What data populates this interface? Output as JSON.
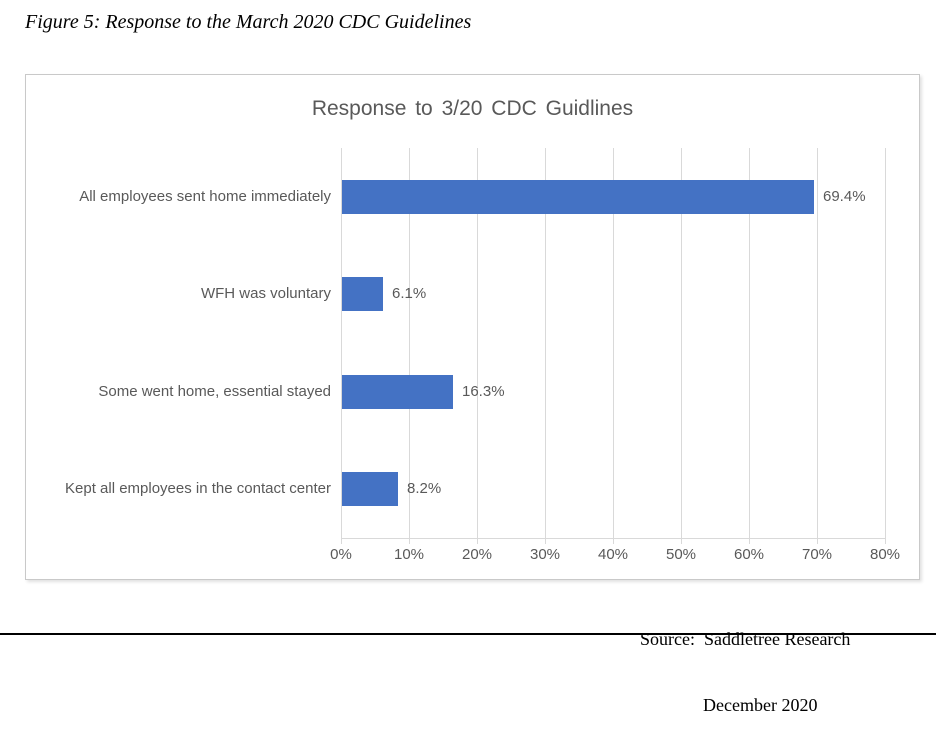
{
  "page": {
    "caption": "Figure 5: Response to the March 2020 CDC Guidelines",
    "source_label": "Source:  Saddletree Research",
    "source_date": "December 2020"
  },
  "chart_data": {
    "type": "bar",
    "orientation": "horizontal",
    "title": "Response to 3/20 CDC Guidlines",
    "categories": [
      "All employees sent home immediately",
      "WFH was voluntary",
      "Some went home, essential stayed",
      "Kept all employees in the contact center"
    ],
    "values": [
      69.4,
      6.1,
      16.3,
      8.2
    ],
    "data_labels": [
      "69.4%",
      "6.1%",
      "16.3%",
      "8.2%"
    ],
    "xlabel": "",
    "ylabel": "",
    "xlim": [
      0,
      80
    ],
    "x_tick_step": 10,
    "x_tick_labels": [
      "0%",
      "10%",
      "20%",
      "30%",
      "40%",
      "50%",
      "60%",
      "70%",
      "80%"
    ],
    "grid": true,
    "legend": "none",
    "bar_color": "#4472c4",
    "text_color": "#595959",
    "gridline_color": "#d9d9d9"
  }
}
